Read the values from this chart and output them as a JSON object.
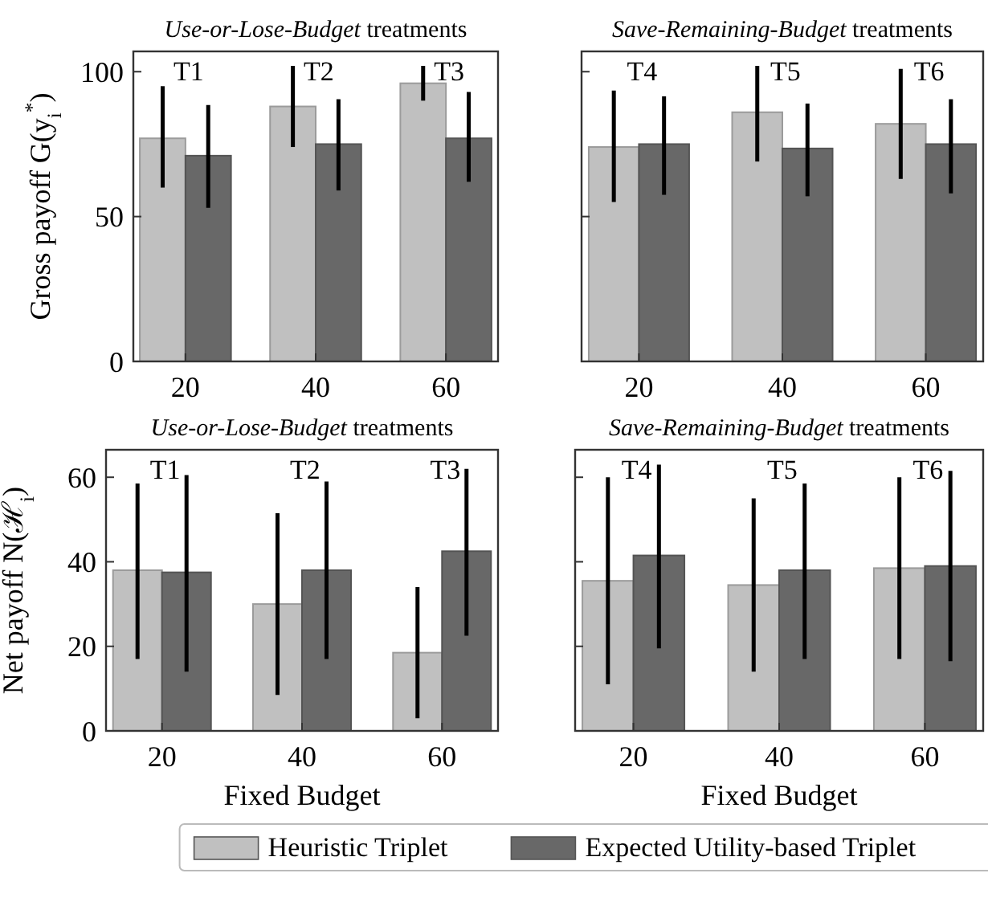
{
  "chart_data": [
    {
      "type": "bar",
      "title": "Use-or-Lose-Budget treatments",
      "ylabel": "Gross payoff G(y$_{i}$$^{*}$)",
      "categories": [
        "20",
        "40",
        "60"
      ],
      "ylim": [
        0,
        107
      ],
      "yticks": [
        0,
        50,
        100
      ],
      "legend": "bottom",
      "series": [
        {
          "name": "Heuristic Triplet",
          "color": "#c0c0c0",
          "values": [
            77,
            88,
            96
          ],
          "errors": [
            [
              60,
              95
            ],
            [
              74,
              102
            ],
            [
              90,
              102
            ]
          ]
        },
        {
          "name": "Expected Utility-based Triplet",
          "color": "#686868",
          "values": [
            71,
            75,
            77
          ],
          "errors": [
            [
              53,
              88.5
            ],
            [
              59,
              90.5
            ],
            [
              62,
              93
            ]
          ]
        }
      ],
      "annotations": [
        "T1",
        "T2",
        "T3"
      ]
    },
    {
      "type": "bar",
      "title": "Save-Remaining-Budget treatments",
      "categories": [
        "20",
        "40",
        "60"
      ],
      "ylim": [
        0,
        107
      ],
      "yticks": [
        0,
        50,
        100
      ],
      "tick_labels": "x",
      "series": [
        {
          "color": "#c0c0c0",
          "values": [
            74,
            86,
            82
          ],
          "errors": [
            [
              55,
              93.5
            ],
            [
              69,
              102
            ],
            [
              63,
              101
            ]
          ]
        },
        {
          "color": "#686868",
          "values": [
            75,
            73.5,
            75
          ],
          "errors": [
            [
              57.5,
              91.5
            ],
            [
              57,
              89
            ],
            [
              58,
              90.5
            ]
          ]
        }
      ],
      "annotations": [
        "T4",
        "T5",
        "T6"
      ]
    },
    {
      "type": "bar",
      "title": "Use-or-Lose-Budget treatments",
      "ylabel": "Net payoff N(ℋ$_{i}$)",
      "xlabel": "Fixed Budget",
      "categories": [
        "20",
        "40",
        "60"
      ],
      "ylim": [
        0,
        66.5
      ],
      "yticks": [
        0,
        20,
        40,
        60
      ],
      "series": [
        {
          "color": "#c0c0c0",
          "values": [
            38,
            30,
            18.5
          ],
          "errors": [
            [
              17,
              58.5
            ],
            [
              8.5,
              51.5
            ],
            [
              3,
              34
            ]
          ]
        },
        {
          "color": "#686868",
          "values": [
            37.5,
            38,
            42.5
          ],
          "errors": [
            [
              14,
              60.5
            ],
            [
              17,
              59
            ],
            [
              22.5,
              62
            ]
          ]
        }
      ],
      "annotations": [
        "T1",
        "T2",
        "T3"
      ]
    },
    {
      "type": "bar",
      "title": "Save-Remaining-Budget treatments",
      "xlabel": "Fixed Budget",
      "categories": [
        "20",
        "40",
        "60"
      ],
      "ylim": [
        0,
        66.5
      ],
      "yticks": [
        0,
        20,
        40,
        60
      ],
      "tick_labels": "x",
      "series": [
        {
          "color": "#c0c0c0",
          "values": [
            35.5,
            34.5,
            38.5
          ],
          "errors": [
            [
              11,
              60
            ],
            [
              14,
              55
            ],
            [
              17,
              60
            ]
          ]
        },
        {
          "color": "#686868",
          "values": [
            41.5,
            38,
            39
          ],
          "errors": [
            [
              19.5,
              63
            ],
            [
              17,
              58.5
            ],
            [
              16.5,
              61.5
            ]
          ]
        }
      ],
      "annotations": [
        "T4",
        "T5",
        "T6"
      ]
    }
  ]
}
